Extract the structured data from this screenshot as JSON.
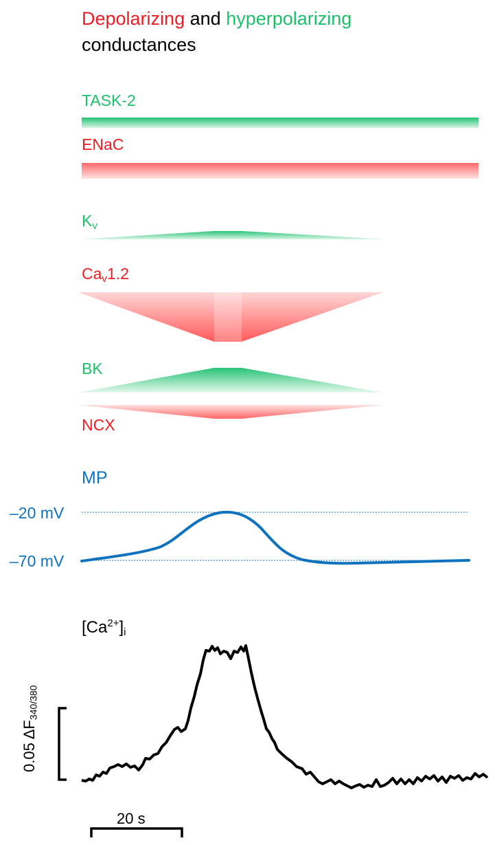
{
  "title": {
    "depolarizing": "Depolarizing",
    "and": "and",
    "hyperpolarizing": "hyperpolarizing",
    "conductances": "conductances"
  },
  "conductances": [
    {
      "id": "task2",
      "label": "TASK-2",
      "type": "hyperpolarizing"
    },
    {
      "id": "enac",
      "label": "ENaC",
      "type": "depolarizing"
    },
    {
      "id": "kv",
      "label": "K",
      "sub": "v",
      "type": "hyperpolarizing"
    },
    {
      "id": "cav",
      "label": "Ca",
      "sub": "v",
      "suffix": "1.2",
      "type": "depolarizing"
    },
    {
      "id": "bk",
      "label": "BK",
      "type": "hyperpolarizing"
    },
    {
      "id": "ncx",
      "label": "NCX",
      "type": "depolarizing"
    }
  ],
  "mp": {
    "label": "MP",
    "levels": [
      "–20 mV",
      "–70 mV"
    ]
  },
  "calcium": {
    "label_base": "[Ca",
    "label_sup": "2+",
    "label_close": "]",
    "label_sub": "i",
    "scale_y_value": "0.05 ΔF",
    "scale_y_sub": "340/380",
    "scale_x": "20 s"
  },
  "colors": {
    "depolarizing": "#ee1d23",
    "hyperpolarizing": "#1dbf6a",
    "membrane_potential": "#0f72bf",
    "calcium_trace": "#000000"
  }
}
